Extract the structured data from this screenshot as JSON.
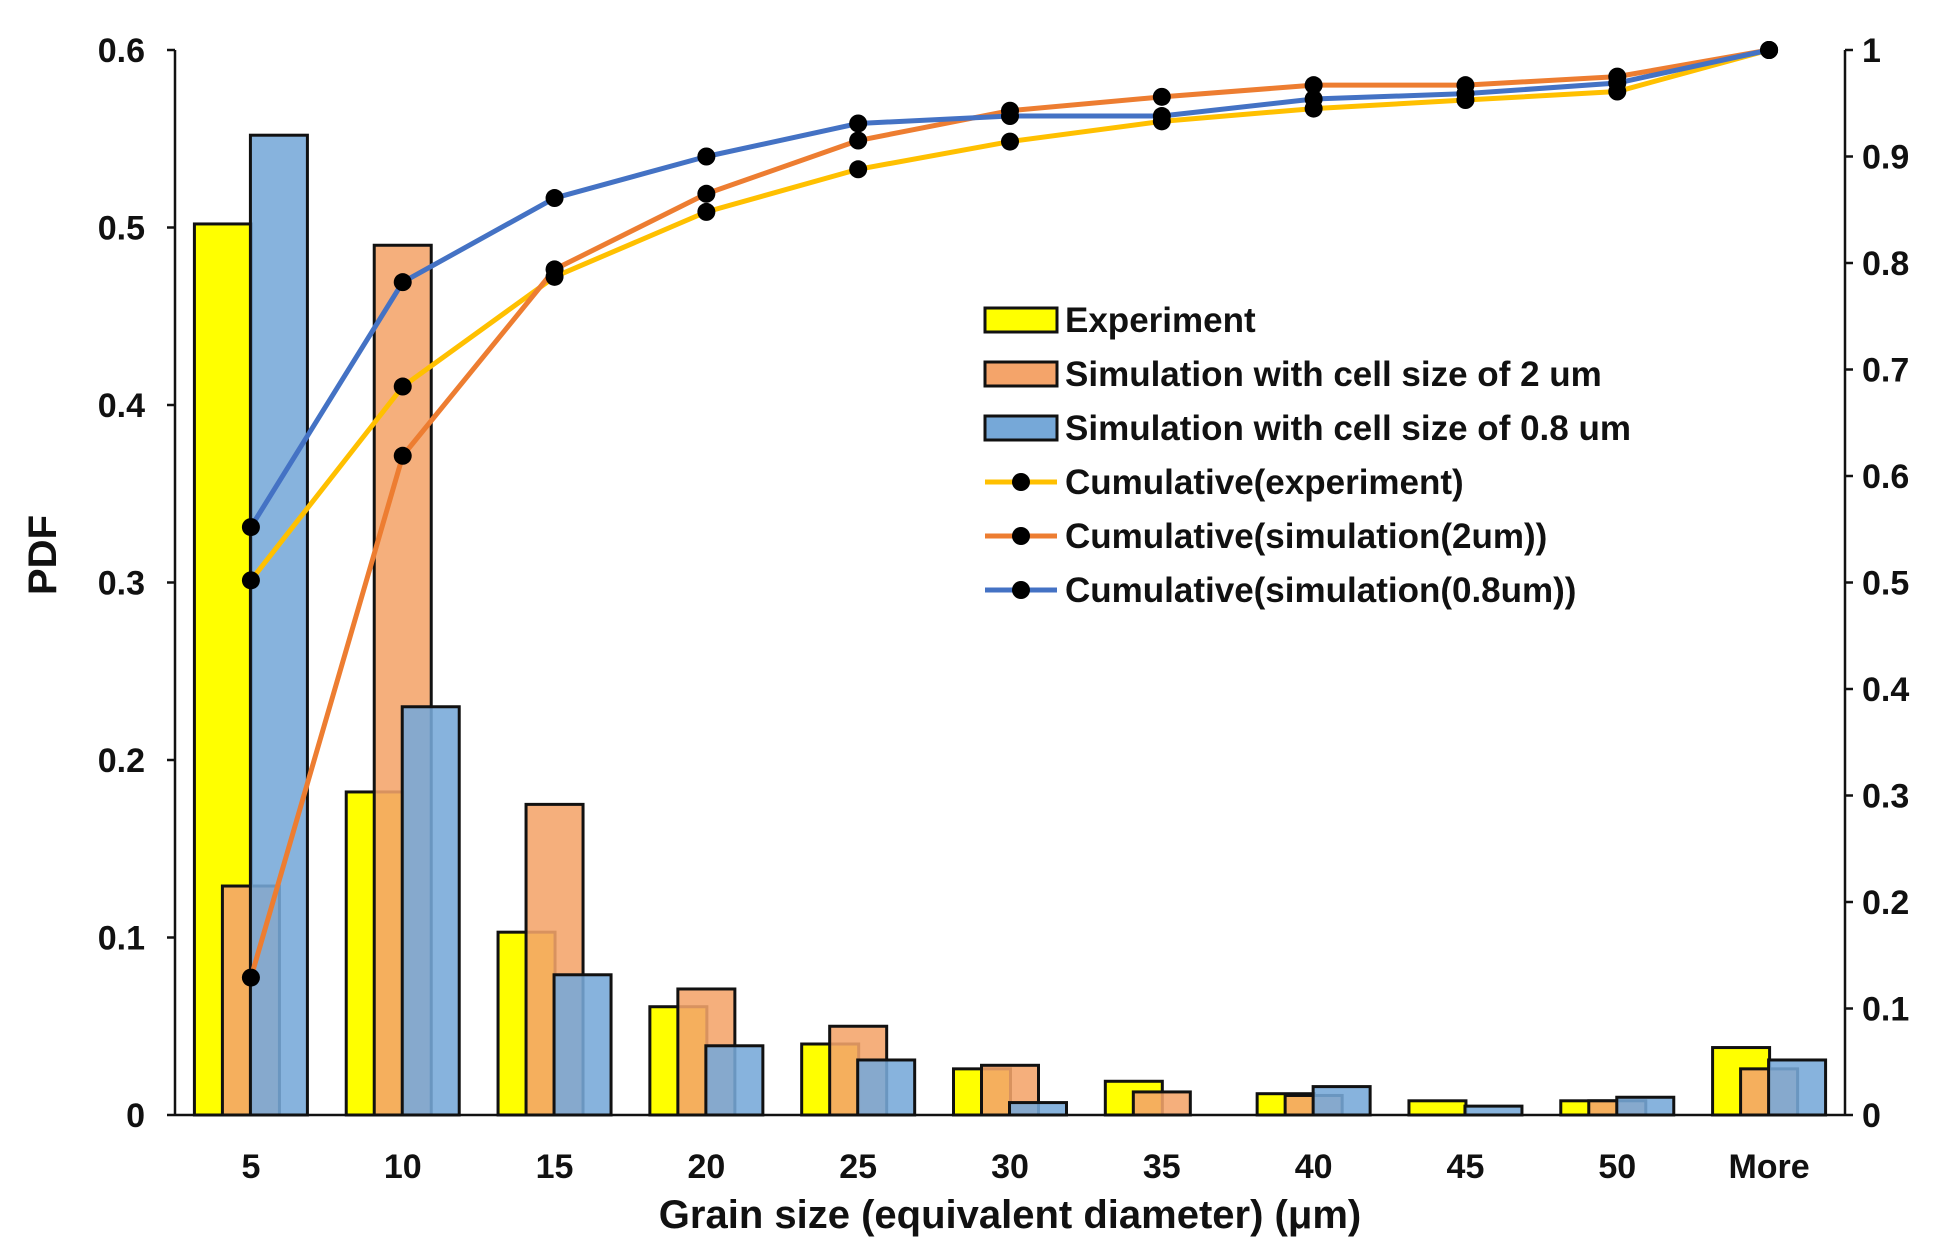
{
  "chart_data": {
    "type": "bar+line",
    "title": "",
    "xlabel": "Grain size (equivalent diameter) (μm)",
    "ylabel": "PDF",
    "ylim": [
      0,
      0.6
    ],
    "y2lim": [
      0,
      1
    ],
    "yticks": [
      "0",
      "0.1",
      "0.2",
      "0.3",
      "0.4",
      "0.5",
      "0.6"
    ],
    "y2ticks": [
      "0",
      "0.1",
      "0.2",
      "0.3",
      "0.4",
      "0.5",
      "0.6",
      "0.7",
      "0.8",
      "0.9",
      "1"
    ],
    "categories": [
      "5",
      "10",
      "15",
      "20",
      "25",
      "30",
      "35",
      "40",
      "45",
      "50",
      "More"
    ],
    "bar_series": [
      {
        "name": "Experiment",
        "color": "#ffff00",
        "values": [
          0.502,
          0.182,
          0.103,
          0.061,
          0.04,
          0.026,
          0.019,
          0.012,
          0.008,
          0.008,
          0.038
        ]
      },
      {
        "name": "Simulation with cell size of 2 um",
        "color": "#f4a46a",
        "values": [
          0.129,
          0.49,
          0.175,
          0.071,
          0.05,
          0.028,
          0.013,
          0.011,
          0.0,
          0.008,
          0.026
        ]
      },
      {
        "name": "Simulation with cell size of 0.8 um",
        "color": "#76a8d8",
        "values": [
          0.552,
          0.23,
          0.079,
          0.039,
          0.031,
          0.007,
          0.0,
          0.016,
          0.005,
          0.01,
          0.031
        ]
      }
    ],
    "line_series": [
      {
        "name": "Cumulative(experiment)",
        "color": "#ffc000",
        "values": [
          0.502,
          0.684,
          0.787,
          0.848,
          0.888,
          0.914,
          0.933,
          0.945,
          0.953,
          0.961,
          1.0
        ]
      },
      {
        "name": "Cumulative(simulation(2um))",
        "color": "#ed7d31",
        "values": [
          0.129,
          0.619,
          0.794,
          0.865,
          0.915,
          0.943,
          0.956,
          0.967,
          0.967,
          0.975,
          1.0
        ]
      },
      {
        "name": "Cumulative(simulation(0.8um))",
        "color": "#4472c4",
        "values": [
          0.552,
          0.782,
          0.861,
          0.9,
          0.931,
          0.938,
          0.938,
          0.954,
          0.959,
          0.969,
          1.0
        ]
      }
    ],
    "legend_position": "center-right"
  }
}
